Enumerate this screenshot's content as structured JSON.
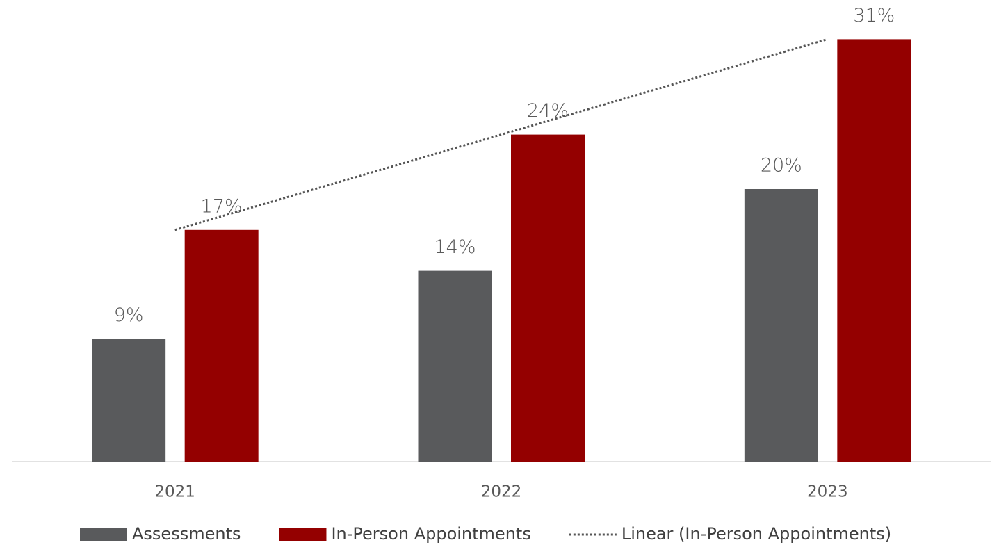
{
  "chart_data": {
    "type": "bar",
    "categories": [
      "2021",
      "2022",
      "2023"
    ],
    "series": [
      {
        "name": "Assessments",
        "color": "#595a5c",
        "values": [
          9,
          14,
          20
        ],
        "value_labels": [
          "9%",
          "14%",
          "20%"
        ]
      },
      {
        "name": "In-Person Appointments",
        "color": "#940000",
        "values": [
          17,
          24,
          31
        ],
        "value_labels": [
          "17%",
          "24%",
          "31%"
        ],
        "trendline": {
          "name": "Linear (In-Person Appointments)",
          "type": "linear",
          "color": "#555555",
          "style": "dotted"
        }
      }
    ],
    "legend": "bottom"
  }
}
